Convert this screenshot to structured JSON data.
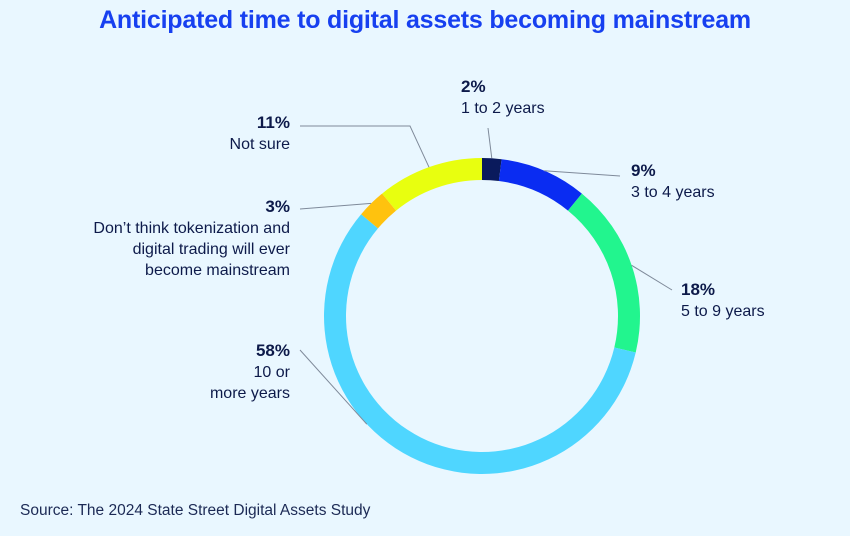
{
  "title": "Anticipated time to digital assets becoming mainstream",
  "source": "Source: The 2024 State Street Digital Assets Study",
  "colors": {
    "background": "#e9f7ff",
    "title": "#1740f0",
    "text": "#0d1a4a",
    "leader": "#7f8a9a"
  },
  "chart_data": {
    "type": "pie",
    "subtype": "donut",
    "slices": [
      {
        "label": "1 to 2 years",
        "value": 2,
        "pct_text": "2%",
        "color": "#0a1a5c"
      },
      {
        "label": "3 to 4 years",
        "value": 9,
        "pct_text": "9%",
        "color": "#0a2cf2"
      },
      {
        "label": "5 to 9 years",
        "value": 18,
        "pct_text": "18%",
        "color": "#22f58e"
      },
      {
        "label": "10 or more years",
        "value": 58,
        "pct_text": "58%",
        "color": "#4fd6ff"
      },
      {
        "label": "Don’t think tokenization and digital trading will ever become mainstream",
        "value": 3,
        "pct_text": "3%",
        "color": "#ffc20e"
      },
      {
        "label": "Not sure",
        "value": 11,
        "pct_text": "11%",
        "color": "#e8ff0f"
      }
    ]
  },
  "labels": {
    "l0": {
      "pct": "2%",
      "lines": [
        "1 to 2 years"
      ]
    },
    "l1": {
      "pct": "9%",
      "lines": [
        "3 to 4 years"
      ]
    },
    "l2": {
      "pct": "18%",
      "lines": [
        "5 to 9 years"
      ]
    },
    "l3": {
      "pct": "58%",
      "lines": [
        "10 or",
        "more years"
      ]
    },
    "l4": {
      "pct": "3%",
      "lines": [
        "Don’t think tokenization and",
        "digital trading will ever",
        "become mainstream"
      ]
    },
    "l5": {
      "pct": "11%",
      "lines": [
        "Not sure"
      ]
    }
  }
}
